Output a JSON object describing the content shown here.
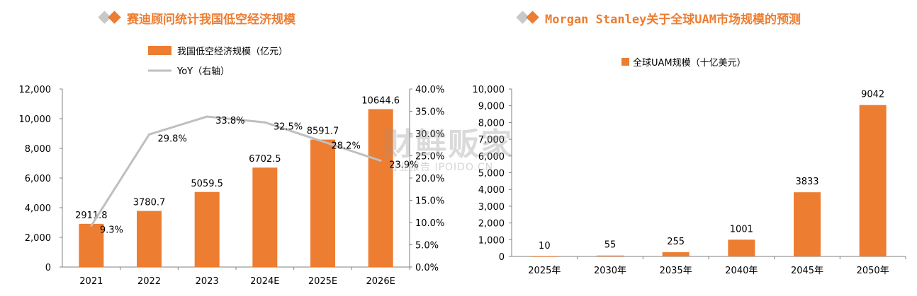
{
  "watermark": {
    "main": "财鲜贩家",
    "sub": "行业报告 IPOIDO.CN"
  },
  "chart_data": [
    {
      "type": "bar",
      "title": "赛迪顾问统计我国低空经济规模",
      "categories": [
        "2021",
        "2022",
        "2023",
        "2024E",
        "2025E",
        "2026E"
      ],
      "series": [
        {
          "name": "我国低空经济规模（亿元）",
          "type": "bar",
          "axis": "left",
          "values": [
            2911.8,
            3780.7,
            5059.5,
            6702.5,
            8591.7,
            10644.6
          ],
          "labels": [
            "2911.8",
            "3780.7",
            "5059.5",
            "6702.5",
            "8591.7",
            "10644.6"
          ]
        },
        {
          "name": "YoY（右轴）",
          "type": "line",
          "axis": "right",
          "values": [
            9.3,
            29.8,
            33.8,
            32.5,
            28.2,
            23.9
          ],
          "labels": [
            "9.3%",
            "29.8%",
            "33.8%",
            "32.5%",
            "28.2%",
            "23.9%"
          ]
        }
      ],
      "y_left": {
        "min": 0,
        "max": 12000,
        "ticks": [
          0,
          2000,
          4000,
          6000,
          8000,
          10000,
          12000
        ],
        "tick_labels": [
          "0",
          "2,000",
          "4,000",
          "6,000",
          "8,000",
          "10,000",
          "12,000"
        ]
      },
      "y_right": {
        "min": 0,
        "max": 40,
        "ticks": [
          0,
          5,
          10,
          15,
          20,
          25,
          30,
          35,
          40
        ],
        "tick_labels": [
          "0.0%",
          "5.0%",
          "10.0%",
          "15.0%",
          "20.0%",
          "25.0%",
          "30.0%",
          "35.0%",
          "40.0%"
        ]
      },
      "legend": "top-left",
      "grid": false,
      "colors": {
        "bar": "#ed7d31",
        "line": "#bfbfbf"
      }
    },
    {
      "type": "bar",
      "title": "Morgan Stanley关于全球UAM市场规模的预测",
      "categories": [
        "2025年",
        "2030年",
        "2035年",
        "2040年",
        "2045年",
        "2050年"
      ],
      "series": [
        {
          "name": "全球UAM规模（十亿美元）",
          "values": [
            10,
            55,
            255,
            1001,
            3833,
            9042
          ],
          "labels": [
            "10",
            "55",
            "255",
            "1001",
            "3833",
            "9042"
          ]
        }
      ],
      "y": {
        "min": 0,
        "max": 10000,
        "ticks": [
          0,
          1000,
          2000,
          3000,
          4000,
          5000,
          6000,
          7000,
          8000,
          9000,
          10000
        ],
        "tick_labels": [
          "0",
          "1,000",
          "2,000",
          "3,000",
          "4,000",
          "5,000",
          "6,000",
          "7,000",
          "8,000",
          "9,000",
          "10,000"
        ]
      },
      "legend": "top-center",
      "grid": false,
      "colors": {
        "bar": "#ed7d31"
      }
    }
  ]
}
